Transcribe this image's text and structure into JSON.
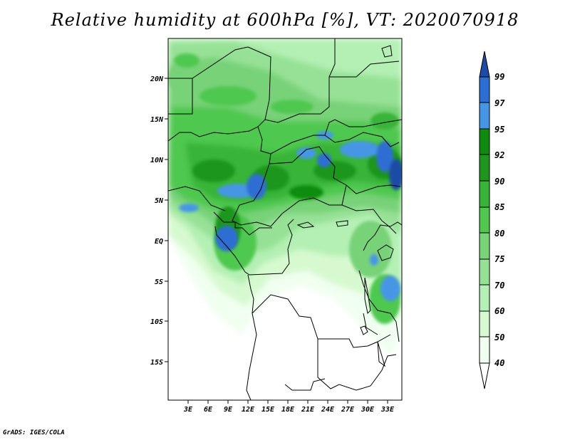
{
  "title": "Relative humidity at 600hPa [%], VT: 2020070918",
  "credit": "GrADS: IGES/COLA",
  "colors": {
    "c40": "#f0fff0",
    "c50": "#d7f9d0",
    "c60": "#b4f0b4",
    "c70": "#96e196",
    "c75": "#78d278",
    "c80": "#50c850",
    "c85": "#37b437",
    "c90": "#1e961e",
    "c92": "#0f8c0f",
    "c95": "#4696e6",
    "c97": "#2d6ed2",
    "c99": "#1e4ba5"
  },
  "map": {
    "lon_range": [
      0,
      36
    ],
    "lat_range": [
      -20,
      25
    ],
    "x_ticks": [
      "3E",
      "6E",
      "9E",
      "12E",
      "15E",
      "18E",
      "21E",
      "24E",
      "27E",
      "30E",
      "33E"
    ],
    "y_ticks": [
      "20N",
      "15N",
      "10N",
      "5N",
      "EQ",
      "5S",
      "10S",
      "15S"
    ]
  },
  "colorbar": {
    "labels": [
      "99",
      "97",
      "95",
      "92",
      "90",
      "85",
      "80",
      "75",
      "70",
      "60",
      "50",
      "40"
    ]
  }
}
